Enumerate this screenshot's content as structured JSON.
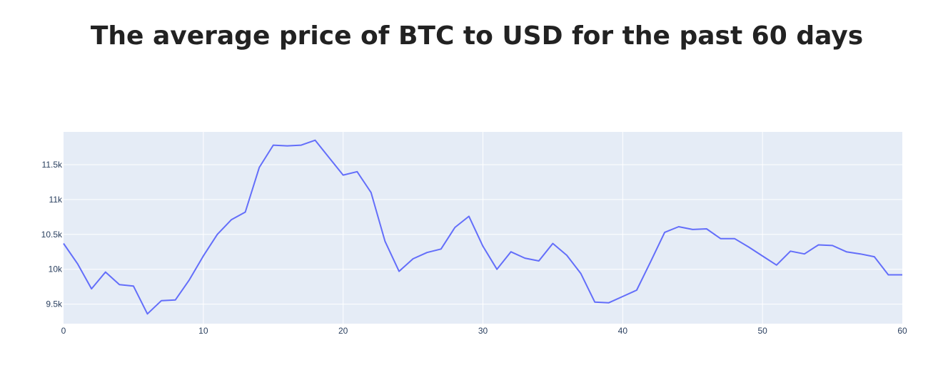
{
  "title": "The average price of BTC to USD for the past 60 days",
  "chart_data": {
    "type": "line",
    "title": "The average price of BTC to USD for the past 60 days",
    "xlabel": "",
    "ylabel": "",
    "xlim": [
      0,
      60
    ],
    "ylim": [
      9220,
      11970
    ],
    "x_ticks": [
      0,
      10,
      20,
      30,
      40,
      50,
      60
    ],
    "x_tick_labels": [
      "0",
      "10",
      "20",
      "30",
      "40",
      "50",
      "60"
    ],
    "y_ticks": [
      9500,
      10000,
      10500,
      11000,
      11500
    ],
    "y_tick_labels": [
      "9.5k",
      "10k",
      "10.5k",
      "11k",
      "11.5k"
    ],
    "grid": true,
    "background_color": "#e5ecf6",
    "line_color": "#636efa",
    "series": [
      {
        "x": [
          0,
          1,
          2,
          3,
          4,
          5,
          6,
          7,
          8,
          9,
          10,
          11,
          12,
          13,
          14,
          15,
          16,
          17,
          18,
          19,
          20,
          21,
          22,
          23,
          24,
          25,
          26,
          27,
          28,
          29,
          30,
          31,
          32,
          33,
          34,
          35,
          36,
          37,
          38,
          39,
          40,
          41,
          42,
          43,
          44,
          45,
          46,
          47,
          48,
          49,
          50,
          51,
          52,
          53,
          54,
          55,
          56,
          57,
          58,
          59,
          60
        ],
        "y": [
          10370,
          10080,
          9720,
          9960,
          9780,
          9760,
          9360,
          9550,
          9560,
          9850,
          10190,
          10500,
          10710,
          10820,
          11460,
          11780,
          11770,
          11780,
          11850,
          11600,
          11350,
          11400,
          11100,
          10400,
          9970,
          10150,
          10240,
          10290,
          10600,
          10760,
          10330,
          10000,
          10250,
          10160,
          10120,
          10370,
          10200,
          9940,
          9530,
          9520,
          9610,
          9700,
          10110,
          10530,
          10610,
          10570,
          10580,
          10440,
          10440,
          10320,
          10190,
          10060,
          10260,
          10220,
          10350,
          10340,
          10250,
          10220,
          10180,
          9920,
          9920
        ]
      }
    ]
  }
}
